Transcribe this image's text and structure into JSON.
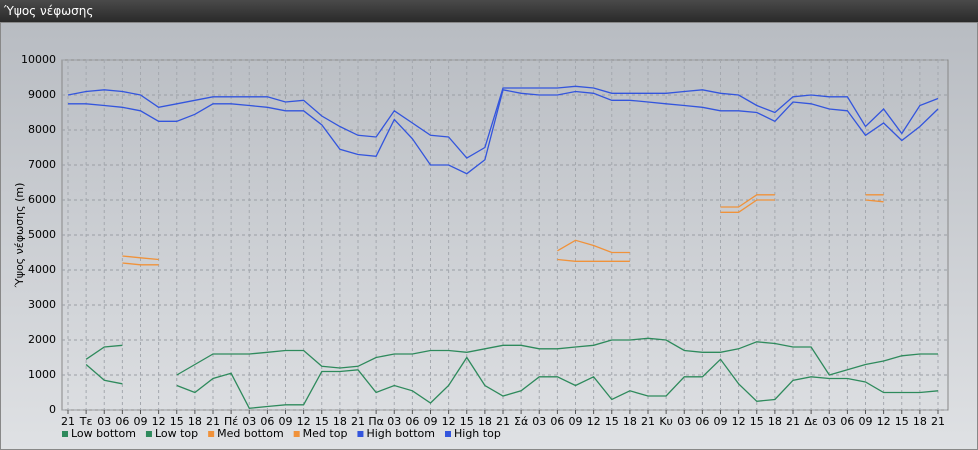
{
  "chart_data": {
    "type": "line",
    "title": "Ύψος νέφωσης",
    "y_label": "Ύψος νέφωσης (m)",
    "categories": [
      "21",
      "Τε",
      "03",
      "06",
      "09",
      "12",
      "15",
      "18",
      "21",
      "Πέ",
      "03",
      "06",
      "09",
      "12",
      "15",
      "18",
      "21",
      "Πα",
      "03",
      "06",
      "09",
      "12",
      "15",
      "18",
      "21",
      "Σά",
      "03",
      "06",
      "09",
      "12",
      "15",
      "18",
      "21",
      "Κυ",
      "03",
      "06",
      "09",
      "12",
      "15",
      "18",
      "21",
      "Δε",
      "03",
      "06",
      "09",
      "12",
      "15",
      "18",
      "21"
    ],
    "ylim": [
      0,
      10000
    ],
    "yticks": [
      0,
      1000,
      2000,
      3000,
      4000,
      5000,
      6000,
      7000,
      8000,
      9000,
      10000
    ],
    "grid": true,
    "legend": "bottom",
    "series": [
      {
        "name": "Low bottom",
        "color": "#2e8a5c",
        "values": [
          null,
          1300,
          850,
          750,
          null,
          null,
          700,
          500,
          900,
          1050,
          50,
          100,
          150,
          150,
          1100,
          1100,
          1150,
          500,
          700,
          550,
          200,
          700,
          1500,
          700,
          400,
          550,
          950,
          950,
          700,
          950,
          300,
          550,
          400,
          400,
          950,
          950,
          1450,
          750,
          250,
          300,
          850,
          950,
          900,
          900,
          800,
          500,
          500,
          500,
          550
        ]
      },
      {
        "name": "Low top",
        "color": "#2e8a5c",
        "values": [
          null,
          1450,
          1800,
          1850,
          null,
          null,
          1000,
          1300,
          1600,
          1600,
          1600,
          1650,
          1700,
          1700,
          1250,
          1200,
          1250,
          1500,
          1600,
          1600,
          1700,
          1700,
          1650,
          1750,
          1850,
          1850,
          1750,
          1750,
          1800,
          1850,
          2000,
          2000,
          2050,
          2000,
          1700,
          1650,
          1650,
          1750,
          1950,
          1900,
          1800,
          1800,
          1000,
          1150,
          1300,
          1400,
          1550,
          1600,
          1600
        ]
      },
      {
        "name": "Med bottom",
        "color": "#f0923a",
        "values": [
          null,
          null,
          null,
          4200,
          4150,
          4150,
          null,
          null,
          null,
          null,
          null,
          null,
          null,
          null,
          null,
          null,
          null,
          null,
          null,
          null,
          null,
          null,
          null,
          null,
          null,
          null,
          null,
          4300,
          4250,
          4250,
          4250,
          4250,
          null,
          null,
          null,
          null,
          5650,
          5650,
          6000,
          6000,
          null,
          null,
          null,
          null,
          6000,
          5950,
          null,
          null,
          null
        ]
      },
      {
        "name": "Med top",
        "color": "#f0923a",
        "values": [
          null,
          null,
          null,
          4400,
          4350,
          4300,
          null,
          null,
          null,
          null,
          null,
          null,
          null,
          null,
          null,
          null,
          null,
          null,
          null,
          null,
          null,
          null,
          null,
          null,
          null,
          null,
          null,
          4550,
          4850,
          4700,
          4500,
          4500,
          null,
          null,
          null,
          null,
          5800,
          5800,
          6150,
          6150,
          null,
          null,
          null,
          null,
          6150,
          6150,
          null,
          null,
          null
        ]
      },
      {
        "name": "High bottom",
        "color": "#3355dd",
        "values": [
          8750,
          8750,
          8700,
          8650,
          8550,
          8250,
          8250,
          8450,
          8750,
          8750,
          8700,
          8650,
          8550,
          8550,
          8150,
          7450,
          7300,
          7250,
          8300,
          7750,
          7000,
          7000,
          6750,
          7150,
          9150,
          9050,
          9000,
          9000,
          9100,
          9050,
          8850,
          8850,
          8800,
          8750,
          8700,
          8650,
          8550,
          8550,
          8500,
          8250,
          8800,
          8750,
          8600,
          8550,
          7850,
          8200,
          7700,
          8100,
          8600
        ]
      },
      {
        "name": "High top",
        "color": "#3355dd",
        "values": [
          9000,
          9100,
          9150,
          9100,
          9000,
          8650,
          8750,
          8850,
          8950,
          8950,
          8950,
          8950,
          8800,
          8850,
          8400,
          8100,
          7850,
          7800,
          8550,
          8200,
          7850,
          7800,
          7200,
          7500,
          9200,
          9200,
          9200,
          9200,
          9250,
          9200,
          9050,
          9050,
          9050,
          9050,
          9100,
          9150,
          9050,
          9000,
          8700,
          8500,
          8950,
          9000,
          8950,
          8950,
          8100,
          8600,
          7900,
          8700,
          8900
        ]
      }
    ]
  }
}
